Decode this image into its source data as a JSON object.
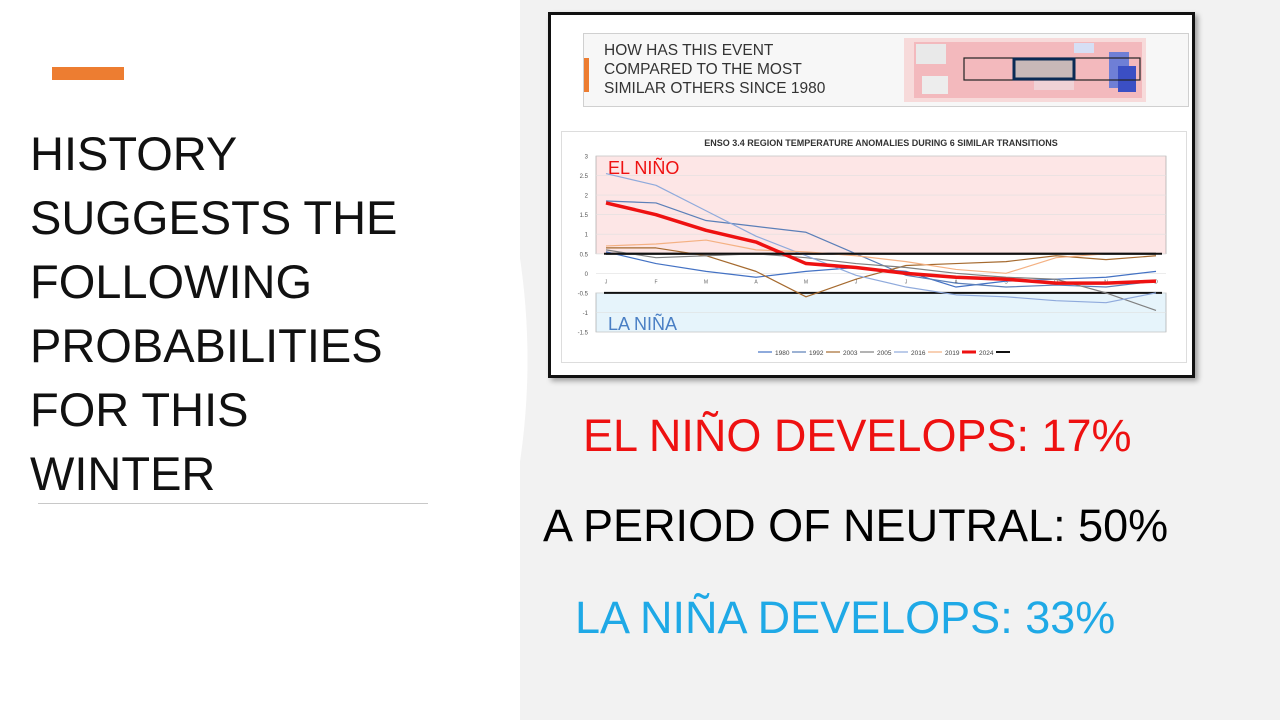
{
  "slide": {
    "title": "HISTORY SUGGESTS THE FOLLOWING PROBABILITIES FOR THIS WINTER",
    "colors": {
      "accent": "#ed7d31",
      "el_nino": "#ee1111",
      "la_nina": "#1fa9e6",
      "neutral": "#000000"
    }
  },
  "figure": {
    "header_lines": [
      "HOW HAS THIS EVENT",
      "COMPARED TO THE MOST",
      "SIMILAR OTHERS SINCE 1980"
    ]
  },
  "probabilities": {
    "el_nino": "EL NIÑO DEVELOPS: 17%",
    "neutral": "A PERIOD OF NEUTRAL: 50%",
    "la_nina": "LA NIÑA DEVELOPS: 33%"
  },
  "chart_data": {
    "type": "line",
    "title": "ENSO 3.4 REGION TEMPERATURE ANOMALIES DURING 6 SIMILAR TRANSITIONS",
    "region_labels": {
      "upper": "EL NIÑO",
      "lower": "LA NIÑA"
    },
    "x": [
      "J",
      "F",
      "M",
      "A",
      "M",
      "J",
      "J",
      "A",
      "S",
      "O",
      "N",
      "D"
    ],
    "ylim": [
      -1.5,
      3
    ],
    "yticks": [
      3,
      2.5,
      2,
      1.5,
      1,
      0.5,
      0,
      -0.5,
      -1,
      -1.5
    ],
    "thresholds": [
      0.5,
      -0.5
    ],
    "legend_position": "bottom",
    "series": [
      {
        "name": "1980",
        "color": "#4472c4",
        "width": 1.2,
        "values": [
          0.55,
          0.25,
          0.05,
          -0.1,
          0.05,
          0.15,
          0.05,
          -0.35,
          -0.2,
          -0.15,
          -0.1,
          0.05
        ]
      },
      {
        "name": "1992",
        "color": "#5b7fb8",
        "width": 1.2,
        "values": [
          1.85,
          1.8,
          1.35,
          1.2,
          1.05,
          0.5,
          -0.05,
          -0.25,
          -0.35,
          -0.3,
          -0.35,
          -0.2
        ]
      },
      {
        "name": "2003",
        "color": "#a56a2f",
        "width": 1.2,
        "values": [
          0.65,
          0.65,
          0.45,
          0.05,
          -0.6,
          -0.15,
          0.2,
          0.25,
          0.3,
          0.45,
          0.35,
          0.45
        ]
      },
      {
        "name": "2005",
        "color": "#808080",
        "width": 1.2,
        "values": [
          0.6,
          0.4,
          0.45,
          0.5,
          0.4,
          0.25,
          0.15,
          0.0,
          -0.1,
          -0.15,
          -0.5,
          -0.95
        ]
      },
      {
        "name": "2016",
        "color": "#8faadc",
        "width": 1.2,
        "values": [
          2.55,
          2.25,
          1.6,
          0.95,
          0.45,
          -0.05,
          -0.35,
          -0.55,
          -0.6,
          -0.7,
          -0.75,
          -0.5
        ]
      },
      {
        "name": "2019",
        "color": "#f4b183",
        "width": 1.2,
        "values": [
          0.7,
          0.75,
          0.85,
          0.6,
          0.55,
          0.45,
          0.3,
          0.1,
          0.0,
          0.4,
          0.5,
          0.5
        ]
      },
      {
        "name": "2024",
        "color": "#ee1111",
        "width": 3.5,
        "values": [
          1.8,
          1.5,
          1.1,
          0.8,
          0.25,
          0.15,
          0.0,
          -0.1,
          -0.15,
          -0.25,
          -0.25,
          -0.2
        ]
      },
      {
        "name": "",
        "color": "#111111",
        "width": 2,
        "values": [
          0.5,
          0.5,
          0.5,
          0.5,
          0.5,
          0.5,
          0.5,
          0.5,
          0.5,
          0.5,
          0.5,
          0.5
        ]
      }
    ]
  }
}
